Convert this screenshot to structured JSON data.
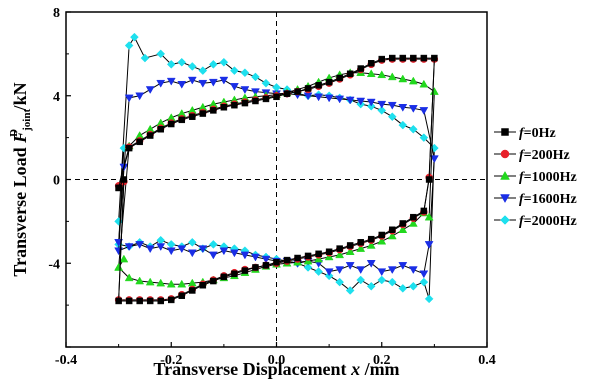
{
  "chart_data": {
    "type": "line",
    "xlabel": "Transverse Displacement x /mm",
    "xlabel_parts": {
      "main": "Transverse Displacement ",
      "var": "x",
      "unit": " /mm"
    },
    "ylabel": "Transverse Load F_joint^D /kN",
    "ylabel_parts": {
      "main": "Transverse Load ",
      "var": "F",
      "sub": "joint",
      "sup": "D",
      "unit": " /kN"
    },
    "xlim": [
      -0.4,
      0.4
    ],
    "ylim": [
      -8,
      8
    ],
    "xticks": [
      -0.4,
      -0.2,
      0.0,
      0.2,
      0.4
    ],
    "xtick_labels": [
      "-0.4",
      "-0.2",
      "0.0",
      "0.2",
      "0.4"
    ],
    "yticks": [
      -8,
      -4,
      0,
      4,
      8
    ],
    "ytick_labels": [
      "",
      "-4",
      "0",
      "4",
      "8"
    ],
    "reference_lines": {
      "x": 0,
      "y": 0,
      "style": "dashed"
    },
    "legend_position": "right",
    "series": [
      {
        "name": "f=0Hz",
        "legend_var": "f",
        "legend_rest": "=0Hz",
        "color": "#000000",
        "marker": "square",
        "x": [
          -0.3,
          -0.28,
          -0.26,
          -0.24,
          -0.22,
          -0.2,
          -0.18,
          -0.16,
          -0.14,
          -0.12,
          -0.1,
          -0.08,
          -0.06,
          -0.04,
          -0.02,
          0.0,
          0.02,
          0.04,
          0.06,
          0.08,
          0.1,
          0.12,
          0.14,
          0.16,
          0.18,
          0.2,
          0.22,
          0.24,
          0.26,
          0.28,
          0.3,
          0.29,
          0.28,
          0.26,
          0.24,
          0.22,
          0.2,
          0.18,
          0.16,
          0.14,
          0.12,
          0.1,
          0.08,
          0.06,
          0.04,
          0.02,
          0.0,
          -0.02,
          -0.04,
          -0.06,
          -0.08,
          -0.1,
          -0.12,
          -0.14,
          -0.16,
          -0.18,
          -0.2,
          -0.22,
          -0.24,
          -0.26,
          -0.28,
          -0.3,
          -0.29,
          -0.3
        ],
        "y": [
          -0.4,
          1.5,
          1.8,
          2.1,
          2.4,
          2.65,
          2.85,
          3.0,
          3.15,
          3.3,
          3.45,
          3.55,
          3.65,
          3.75,
          3.85,
          3.95,
          4.1,
          4.2,
          4.35,
          4.5,
          4.65,
          4.85,
          5.05,
          5.3,
          5.55,
          5.75,
          5.8,
          5.8,
          5.8,
          5.8,
          5.8,
          0.0,
          -1.5,
          -1.8,
          -2.1,
          -2.4,
          -2.65,
          -2.85,
          -3.0,
          -3.15,
          -3.3,
          -3.45,
          -3.55,
          -3.65,
          -3.75,
          -3.85,
          -3.95,
          -4.1,
          -4.2,
          -4.35,
          -4.5,
          -4.65,
          -4.85,
          -5.05,
          -5.3,
          -5.55,
          -5.75,
          -5.8,
          -5.8,
          -5.8,
          -5.8,
          -5.8,
          0.0,
          -0.4
        ]
      },
      {
        "name": "f=200Hz",
        "legend_var": "f",
        "legend_rest": "=200Hz",
        "color": "#e8202a",
        "marker": "circle",
        "x": [
          -0.3,
          -0.28,
          -0.26,
          -0.24,
          -0.22,
          -0.2,
          -0.18,
          -0.16,
          -0.14,
          -0.12,
          -0.1,
          -0.08,
          -0.06,
          -0.04,
          -0.02,
          0.0,
          0.02,
          0.04,
          0.06,
          0.08,
          0.1,
          0.12,
          0.14,
          0.16,
          0.18,
          0.2,
          0.22,
          0.24,
          0.26,
          0.28,
          0.3,
          0.29,
          0.28,
          0.26,
          0.24,
          0.22,
          0.2,
          0.18,
          0.16,
          0.14,
          0.12,
          0.1,
          0.08,
          0.06,
          0.04,
          0.02,
          0.0,
          -0.02,
          -0.04,
          -0.06,
          -0.08,
          -0.1,
          -0.12,
          -0.14,
          -0.16,
          -0.18,
          -0.2,
          -0.22,
          -0.24,
          -0.26,
          -0.28,
          -0.3,
          -0.29
        ],
        "y": [
          -0.3,
          1.55,
          1.85,
          2.15,
          2.45,
          2.7,
          2.9,
          3.05,
          3.2,
          3.35,
          3.5,
          3.6,
          3.7,
          3.8,
          3.9,
          4.0,
          4.1,
          4.2,
          4.3,
          4.45,
          4.6,
          4.8,
          5.0,
          5.25,
          5.5,
          5.7,
          5.75,
          5.75,
          5.75,
          5.75,
          5.75,
          0.1,
          -1.55,
          -1.85,
          -2.15,
          -2.45,
          -2.7,
          -2.9,
          -3.05,
          -3.2,
          -3.35,
          -3.5,
          -3.6,
          -3.7,
          -3.8,
          -3.9,
          -4.0,
          -4.1,
          -4.2,
          -4.3,
          -4.45,
          -4.6,
          -4.8,
          -5.0,
          -5.25,
          -5.5,
          -5.7,
          -5.75,
          -5.75,
          -5.75,
          -5.75,
          -5.75,
          -0.1
        ]
      },
      {
        "name": "f=1000Hz",
        "legend_var": "f",
        "legend_rest": "=1000Hz",
        "color": "#22d81e",
        "marker": "triangle-up",
        "x": [
          -0.3,
          -0.28,
          -0.26,
          -0.24,
          -0.22,
          -0.2,
          -0.18,
          -0.16,
          -0.14,
          -0.12,
          -0.1,
          -0.08,
          -0.06,
          -0.04,
          -0.02,
          0.0,
          0.02,
          0.04,
          0.06,
          0.08,
          0.1,
          0.12,
          0.14,
          0.16,
          0.18,
          0.2,
          0.22,
          0.24,
          0.26,
          0.28,
          0.3,
          0.29,
          0.28,
          0.26,
          0.24,
          0.22,
          0.2,
          0.18,
          0.16,
          0.14,
          0.12,
          0.1,
          0.08,
          0.06,
          0.04,
          0.02,
          0.0,
          -0.02,
          -0.04,
          -0.06,
          -0.08,
          -0.1,
          -0.12,
          -0.14,
          -0.16,
          -0.18,
          -0.2,
          -0.22,
          -0.24,
          -0.26,
          -0.28,
          -0.3,
          -0.29
        ],
        "y": [
          -4.2,
          1.6,
          2.1,
          2.4,
          2.7,
          2.95,
          3.15,
          3.3,
          3.45,
          3.6,
          3.7,
          3.8,
          3.9,
          3.95,
          4.0,
          4.05,
          4.15,
          4.3,
          4.45,
          4.65,
          4.85,
          5.0,
          5.1,
          5.1,
          5.05,
          5.0,
          4.9,
          4.8,
          4.7,
          4.55,
          4.2,
          -1.8,
          -1.6,
          -2.1,
          -2.4,
          -2.7,
          -2.95,
          -3.15,
          -3.3,
          -3.45,
          -3.6,
          -3.7,
          -3.8,
          -3.9,
          -3.95,
          -4.0,
          -4.05,
          -4.15,
          -4.3,
          -4.45,
          -4.6,
          -4.7,
          -4.8,
          -4.9,
          -4.95,
          -5.0,
          -5.0,
          -4.95,
          -4.9,
          -4.85,
          -4.7,
          -4.2,
          -3.8
        ]
      },
      {
        "name": "f=1600Hz",
        "legend_var": "f",
        "legend_rest": "=1600Hz",
        "color": "#1a2ee6",
        "marker": "triangle-down",
        "x": [
          -0.3,
          -0.28,
          -0.26,
          -0.24,
          -0.22,
          -0.2,
          -0.18,
          -0.16,
          -0.14,
          -0.12,
          -0.1,
          -0.08,
          -0.06,
          -0.04,
          -0.02,
          0.0,
          0.02,
          0.04,
          0.06,
          0.08,
          0.1,
          0.12,
          0.14,
          0.16,
          0.18,
          0.2,
          0.22,
          0.24,
          0.26,
          0.28,
          0.3,
          0.29,
          0.28,
          0.26,
          0.24,
          0.22,
          0.2,
          0.18,
          0.16,
          0.14,
          0.12,
          0.1,
          0.08,
          0.06,
          0.04,
          0.02,
          0.0,
          -0.02,
          -0.04,
          -0.06,
          -0.08,
          -0.1,
          -0.12,
          -0.14,
          -0.16,
          -0.18,
          -0.2,
          -0.22,
          -0.24,
          -0.26,
          -0.28,
          -0.3,
          -0.29
        ],
        "y": [
          -3.0,
          3.9,
          4.0,
          4.3,
          4.6,
          4.7,
          4.55,
          4.75,
          4.6,
          4.65,
          4.75,
          4.45,
          4.3,
          4.2,
          4.15,
          4.1,
          4.1,
          4.05,
          4.0,
          3.95,
          3.9,
          3.85,
          3.8,
          3.75,
          3.7,
          3.6,
          3.55,
          3.45,
          3.4,
          3.3,
          1.0,
          -3.1,
          -4.5,
          -4.3,
          -4.1,
          -4.3,
          -4.4,
          -4.0,
          -4.3,
          -4.1,
          -4.3,
          -4.4,
          -4.0,
          -3.9,
          -4.0,
          -3.9,
          -3.9,
          -3.8,
          -3.7,
          -3.6,
          -3.5,
          -3.4,
          -3.6,
          -3.3,
          -3.5,
          -3.3,
          -3.4,
          -3.2,
          -3.3,
          -3.1,
          -3.2,
          -3.4,
          0.6
        ]
      },
      {
        "name": "f=2000Hz",
        "legend_var": "f",
        "legend_rest": "=2000Hz",
        "color": "#1ee0ee",
        "marker": "diamond",
        "x": [
          -0.3,
          -0.28,
          -0.27,
          -0.25,
          -0.22,
          -0.2,
          -0.18,
          -0.16,
          -0.14,
          -0.12,
          -0.1,
          -0.08,
          -0.06,
          -0.04,
          -0.02,
          0.0,
          0.02,
          0.04,
          0.06,
          0.08,
          0.1,
          0.12,
          0.14,
          0.16,
          0.18,
          0.2,
          0.22,
          0.24,
          0.26,
          0.28,
          0.3,
          0.29,
          0.28,
          0.26,
          0.24,
          0.22,
          0.2,
          0.18,
          0.16,
          0.14,
          0.12,
          0.1,
          0.08,
          0.06,
          0.04,
          0.02,
          0.0,
          -0.02,
          -0.04,
          -0.06,
          -0.08,
          -0.1,
          -0.12,
          -0.14,
          -0.16,
          -0.18,
          -0.2,
          -0.22,
          -0.24,
          -0.26,
          -0.28,
          -0.3,
          -0.29
        ],
        "y": [
          -2.0,
          6.4,
          6.8,
          5.8,
          6.0,
          5.5,
          5.6,
          5.4,
          5.2,
          5.5,
          5.6,
          5.2,
          5.1,
          4.9,
          4.6,
          4.4,
          4.3,
          4.1,
          4.0,
          4.05,
          4.0,
          3.9,
          3.8,
          3.6,
          3.5,
          3.3,
          3.0,
          2.6,
          2.4,
          2.0,
          1.5,
          -5.7,
          -4.9,
          -5.1,
          -5.2,
          -4.9,
          -4.8,
          -5.1,
          -4.8,
          -5.3,
          -4.9,
          -4.6,
          -4.4,
          -4.2,
          -4.0,
          -3.9,
          -3.8,
          -3.7,
          -3.6,
          -3.4,
          -3.3,
          -3.2,
          -3.1,
          -3.3,
          -3.0,
          -3.2,
          -3.1,
          -2.9,
          -3.2,
          -3.0,
          -3.2,
          -3.1,
          1.5
        ]
      }
    ]
  }
}
